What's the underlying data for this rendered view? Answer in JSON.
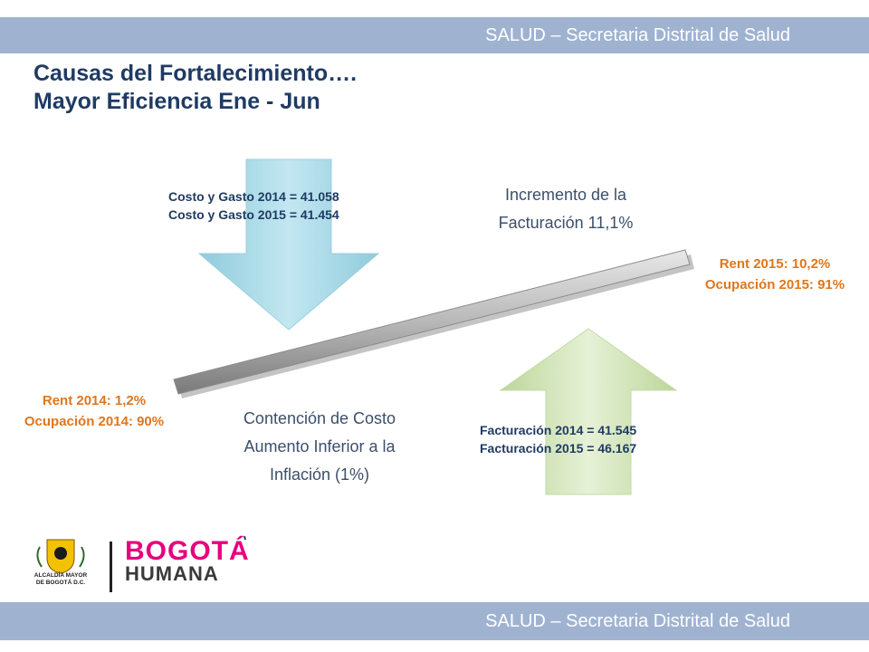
{
  "header": {
    "band_text": "SALUD – Secretaria Distrital de Salud"
  },
  "footer": {
    "band_text": "SALUD – Secretaria Distrital de Salud"
  },
  "title": {
    "line1": "Causas del Fortalecimiento….",
    "line2": "Mayor Eficiencia Ene - Jun"
  },
  "down_arrow": {
    "line1": "Costo y Gasto 2014 = 41.058",
    "line2": "Costo y Gasto 2015 = 41.454"
  },
  "up_arrow": {
    "line1": "Facturación 2014 = 41.545",
    "line2": "Facturación 2015 = 46.167"
  },
  "left_end": {
    "line1": "Rent 2014: 1,2%",
    "line2": "Ocupación 2014: 90%"
  },
  "right_end": {
    "line1": "Rent 2015: 10,2%",
    "line2": "Ocupación 2015: 91%"
  },
  "increment": {
    "line1": "Incremento de la",
    "line2": "Facturación 11,1%"
  },
  "containment": {
    "line1": "Contención de Costo",
    "line2": "Aumento Inferior a la",
    "line3": "Inflación (1%)"
  },
  "logos": {
    "alcaldia_line1": "ALCALDÍA MAYOR",
    "alcaldia_line2": "DE BOGOTÁ D.C.",
    "brand_line1": "BOGOTÁ",
    "brand_line2": "HUMANA"
  },
  "colors": {
    "band": "#9fb3d1",
    "title": "#1f3b64",
    "accent_orange": "#e0761b",
    "down_arrow": "#a9d8e6",
    "up_arrow": "#d4e6b5"
  }
}
